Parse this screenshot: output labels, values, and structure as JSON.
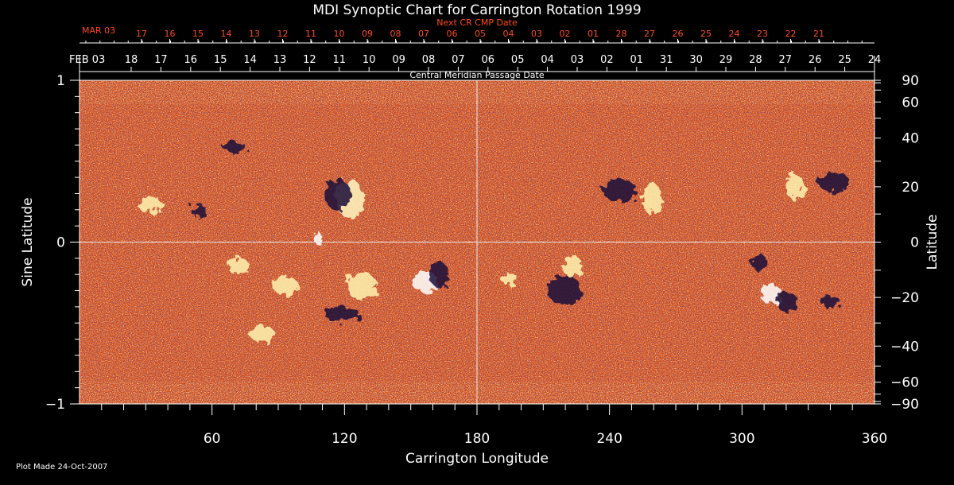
{
  "chart_data": {
    "type": "heatmap",
    "title": "MDI Synoptic Chart for Carrington Rotation 1999",
    "xlabel": "Carrington Longitude",
    "ylabel_left": "Sine Latitude",
    "ylabel_right": "Latitude",
    "xlim": [
      0,
      360
    ],
    "ylim": [
      -1,
      1
    ],
    "x_ticks": [
      60,
      120,
      180,
      240,
      300,
      360
    ],
    "y_ticks_left": [
      1,
      0,
      -1
    ],
    "y_ticks_right": [
      90,
      60,
      40,
      20,
      0,
      -20,
      -40,
      -60,
      -90
    ],
    "top_axis": {
      "label": "Central Meridian Passage Date",
      "start_label": "FEB 03",
      "dates": [
        "18",
        "17",
        "16",
        "15",
        "14",
        "13",
        "12",
        "11",
        "10",
        "09",
        "08",
        "07",
        "06",
        "05",
        "04",
        "03",
        "02",
        "01",
        "31",
        "30",
        "29",
        "28",
        "27",
        "26",
        "25",
        "24"
      ]
    },
    "next_cr_axis": {
      "label": "Next CR CMP Date",
      "start_label": "MAR 03",
      "dates": [
        "17",
        "16",
        "15",
        "14",
        "13",
        "12",
        "11",
        "10",
        "09",
        "08",
        "07",
        "06",
        "05",
        "04",
        "03",
        "02",
        "01",
        "28",
        "27",
        "26",
        "25",
        "24",
        "23",
        "22",
        "21"
      ]
    },
    "grid_lines": {
      "longitude": 180,
      "sine_latitude": 0
    },
    "colors": {
      "background_field": "#e8561a",
      "positive_polarity": "#fff8c8",
      "negative_polarity": "#1c1040",
      "next_cr_text": "#ff4a1a"
    }
  },
  "footer": {
    "plot_made": "Plot Made 24-Oct-2007"
  }
}
